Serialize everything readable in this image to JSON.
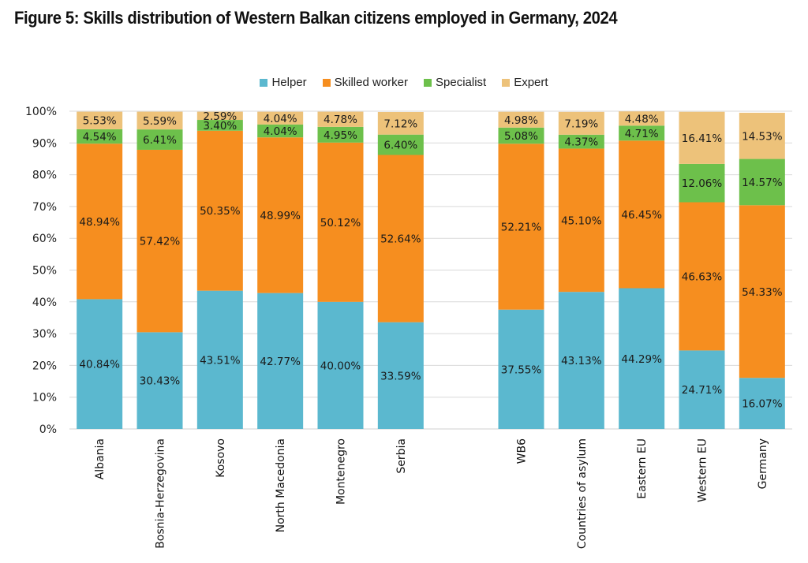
{
  "title": "Figure 5: Skills distribution of Western Balkan citizens employed in Germany, 2024",
  "chart_data": {
    "type": "bar",
    "stacked": true,
    "title": "Figure 5: Skills distribution of Western Balkan citizens employed in Germany, 2024",
    "xlabel": "",
    "ylabel": "",
    "ylim": [
      0,
      100
    ],
    "y_ticks": [
      "0%",
      "10%",
      "20%",
      "30%",
      "40%",
      "50%",
      "60%",
      "70%",
      "80%",
      "90%",
      "100%"
    ],
    "grid": true,
    "legend_position": "top-center",
    "categories": [
      "Albania",
      "Bosnia-Herzegovina",
      "Kosovo",
      "North Macedonia",
      "Montenegro",
      "Serbia",
      "",
      "WB6",
      "Countries of asylum",
      "Eastern EU",
      "Western EU",
      "Germany"
    ],
    "series": [
      {
        "name": "Helper",
        "color": "#5BB8CF",
        "values": [
          40.84,
          30.43,
          43.51,
          42.77,
          40.0,
          33.59,
          null,
          37.55,
          43.13,
          44.29,
          24.71,
          16.07
        ]
      },
      {
        "name": "Skilled worker",
        "color": "#F68E1F",
        "values": [
          48.94,
          57.42,
          50.35,
          48.99,
          50.12,
          52.64,
          null,
          52.21,
          45.1,
          46.45,
          46.63,
          54.33
        ]
      },
      {
        "name": "Specialist",
        "color": "#6DC04B",
        "values": [
          4.54,
          6.41,
          3.4,
          4.04,
          4.95,
          6.4,
          null,
          5.08,
          4.37,
          4.71,
          12.06,
          14.57
        ]
      },
      {
        "name": "Expert",
        "color": "#EDC27A",
        "values": [
          5.53,
          5.59,
          2.59,
          4.04,
          4.78,
          7.12,
          null,
          4.98,
          7.19,
          4.48,
          16.41,
          14.53
        ]
      }
    ],
    "data_labels": [
      [
        "40.84%",
        "30.43%",
        "43.51%",
        "42.77%",
        "40.00%",
        "33.59%",
        "",
        "37.55%",
        "43.13%",
        "44.29%",
        "24.71%",
        "16.07%"
      ],
      [
        "48.94%",
        "57.42%",
        "50.35%",
        "48.99%",
        "50.12%",
        "52.64%",
        "",
        "52.21%",
        "45.10%",
        "46.45%",
        "46.63%",
        "54.33%"
      ],
      [
        "4.54%",
        "6.41%",
        "3.40%",
        "4.04%",
        "4.95%",
        "6.40%",
        "",
        "5.08%",
        "4.37%",
        "4.71%",
        "12.06%",
        "14.57%"
      ],
      [
        "5.53%",
        "5.59%",
        "2.59%",
        "4.04%",
        "4.78%",
        "7.12%",
        "",
        "4.98%",
        "7.19%",
        "4.48%",
        "16.41%",
        "14.53%"
      ]
    ]
  }
}
